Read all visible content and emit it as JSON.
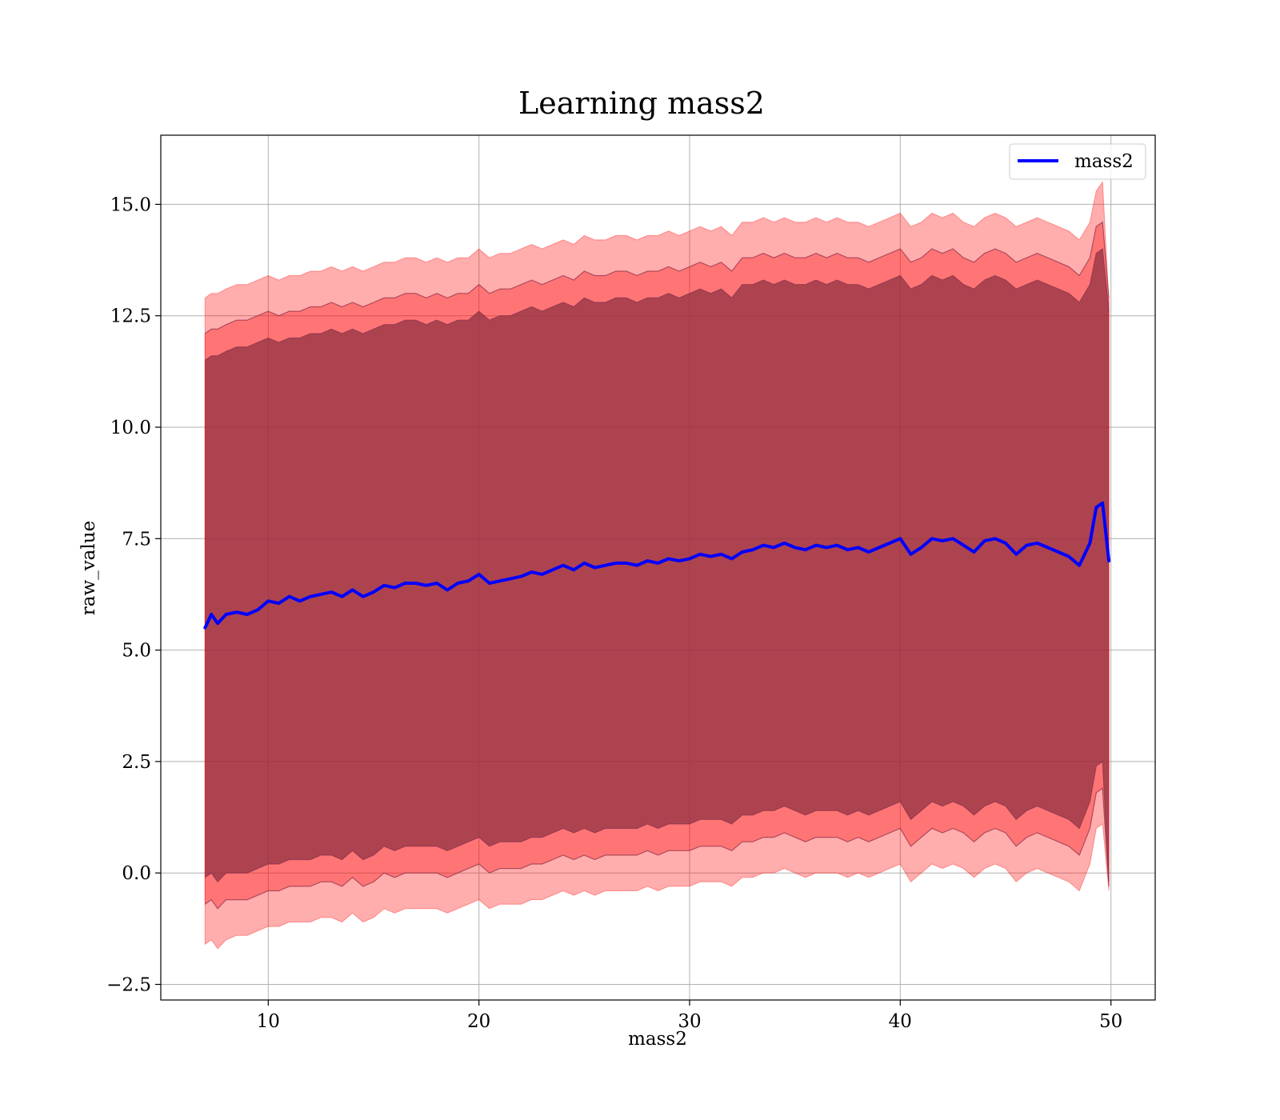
{
  "chart_data": {
    "type": "area",
    "title": "Learning mass2",
    "xlabel": "mass2",
    "ylabel": "raw_value",
    "xlim": [
      4.9,
      52.1
    ],
    "ylim": [
      -2.85,
      16.55
    ],
    "xticks": [
      10,
      20,
      30,
      40,
      50
    ],
    "xtick_labels": [
      "10",
      "20",
      "30",
      "40",
      "50"
    ],
    "yticks": [
      -2.5,
      0.0,
      2.5,
      5.0,
      7.5,
      10.0,
      12.5,
      15.0
    ],
    "ytick_labels": [
      "−2.5",
      "0.0",
      "2.5",
      "5.0",
      "7.5",
      "10.0",
      "12.5",
      "15.0"
    ],
    "grid": true,
    "legend": {
      "position": "top-right",
      "entries": [
        "mass2"
      ]
    },
    "series": [
      {
        "name": "mass2",
        "color": "#0000ff",
        "x": [
          7.0,
          7.3,
          7.6,
          8.0,
          8.5,
          9.0,
          9.5,
          10.0,
          10.5,
          11.0,
          11.5,
          12.0,
          12.5,
          13.0,
          13.5,
          14.0,
          14.5,
          15.0,
          15.5,
          16.0,
          16.5,
          17.0,
          17.5,
          18.0,
          18.5,
          19.0,
          19.5,
          20.0,
          20.5,
          21.0,
          21.5,
          22.0,
          22.5,
          23.0,
          23.5,
          24.0,
          24.5,
          25.0,
          25.5,
          26.0,
          26.5,
          27.0,
          27.5,
          28.0,
          28.5,
          29.0,
          29.5,
          30.0,
          30.5,
          31.0,
          31.5,
          32.0,
          32.5,
          33.0,
          33.5,
          34.0,
          34.5,
          35.0,
          35.5,
          36.0,
          36.5,
          37.0,
          37.5,
          38.0,
          38.5,
          39.0,
          39.5,
          40.0,
          40.5,
          41.0,
          41.5,
          42.0,
          42.5,
          43.0,
          43.5,
          44.0,
          44.5,
          45.0,
          45.5,
          46.0,
          46.5,
          47.0,
          47.5,
          48.0,
          48.5,
          49.0,
          49.3,
          49.6,
          49.9
        ],
        "y": [
          5.5,
          5.8,
          5.6,
          5.8,
          5.85,
          5.8,
          5.9,
          6.1,
          6.05,
          6.2,
          6.1,
          6.2,
          6.25,
          6.3,
          6.2,
          6.35,
          6.2,
          6.3,
          6.45,
          6.4,
          6.5,
          6.5,
          6.45,
          6.5,
          6.35,
          6.5,
          6.55,
          6.7,
          6.5,
          6.55,
          6.6,
          6.65,
          6.75,
          6.7,
          6.8,
          6.9,
          6.8,
          6.95,
          6.85,
          6.9,
          6.95,
          6.95,
          6.9,
          7.0,
          6.95,
          7.05,
          7.0,
          7.05,
          7.15,
          7.1,
          7.15,
          7.05,
          7.2,
          7.25,
          7.35,
          7.3,
          7.4,
          7.3,
          7.25,
          7.35,
          7.3,
          7.35,
          7.25,
          7.3,
          7.2,
          7.3,
          7.4,
          7.5,
          7.15,
          7.3,
          7.5,
          7.45,
          7.5,
          7.35,
          7.2,
          7.45,
          7.5,
          7.4,
          7.15,
          7.35,
          7.4,
          7.3,
          7.2,
          7.1,
          6.9,
          7.4,
          8.2,
          8.3,
          7.0
        ],
        "bands": [
          {
            "upper": [
              11.5,
              11.6,
              11.6,
              11.7,
              11.8,
              11.8,
              11.9,
              12.0,
              11.9,
              12.0,
              12.0,
              12.1,
              12.1,
              12.2,
              12.1,
              12.2,
              12.1,
              12.2,
              12.3,
              12.3,
              12.4,
              12.4,
              12.3,
              12.4,
              12.3,
              12.4,
              12.4,
              12.6,
              12.4,
              12.5,
              12.5,
              12.6,
              12.7,
              12.6,
              12.7,
              12.8,
              12.7,
              12.9,
              12.8,
              12.8,
              12.9,
              12.9,
              12.8,
              12.9,
              12.9,
              13.0,
              12.9,
              13.0,
              13.1,
              13.0,
              13.1,
              12.9,
              13.2,
              13.2,
              13.3,
              13.2,
              13.3,
              13.2,
              13.2,
              13.3,
              13.2,
              13.3,
              13.2,
              13.2,
              13.1,
              13.2,
              13.3,
              13.4,
              13.1,
              13.2,
              13.4,
              13.3,
              13.4,
              13.2,
              13.1,
              13.3,
              13.4,
              13.3,
              13.1,
              13.2,
              13.3,
              13.2,
              13.1,
              13.0,
              12.8,
              13.2,
              13.9,
              14.0,
              12.6
            ],
            "lower": [
              -0.1,
              0.0,
              -0.2,
              0.0,
              0.0,
              0.0,
              0.1,
              0.2,
              0.2,
              0.3,
              0.3,
              0.3,
              0.4,
              0.4,
              0.3,
              0.5,
              0.3,
              0.4,
              0.6,
              0.5,
              0.6,
              0.6,
              0.6,
              0.6,
              0.5,
              0.6,
              0.7,
              0.8,
              0.6,
              0.7,
              0.7,
              0.7,
              0.8,
              0.8,
              0.9,
              1.0,
              0.9,
              1.0,
              0.9,
              1.0,
              1.0,
              1.0,
              1.0,
              1.1,
              1.0,
              1.1,
              1.1,
              1.1,
              1.2,
              1.2,
              1.2,
              1.1,
              1.3,
              1.3,
              1.4,
              1.4,
              1.5,
              1.4,
              1.3,
              1.4,
              1.4,
              1.4,
              1.3,
              1.4,
              1.3,
              1.4,
              1.5,
              1.6,
              1.2,
              1.4,
              1.6,
              1.5,
              1.6,
              1.5,
              1.3,
              1.5,
              1.6,
              1.5,
              1.2,
              1.4,
              1.5,
              1.4,
              1.3,
              1.2,
              1.0,
              1.6,
              2.4,
              2.5,
              -0.2
            ]
          },
          {
            "upper": [
              12.1,
              12.2,
              12.2,
              12.3,
              12.4,
              12.4,
              12.5,
              12.6,
              12.5,
              12.6,
              12.6,
              12.7,
              12.7,
              12.8,
              12.7,
              12.8,
              12.7,
              12.8,
              12.9,
              12.9,
              13.0,
              13.0,
              12.9,
              13.0,
              12.9,
              13.0,
              13.0,
              13.2,
              13.0,
              13.1,
              13.1,
              13.2,
              13.3,
              13.2,
              13.3,
              13.4,
              13.3,
              13.5,
              13.4,
              13.4,
              13.5,
              13.5,
              13.4,
              13.5,
              13.5,
              13.6,
              13.5,
              13.6,
              13.7,
              13.6,
              13.7,
              13.5,
              13.8,
              13.8,
              13.9,
              13.8,
              13.9,
              13.8,
              13.8,
              13.9,
              13.8,
              13.9,
              13.8,
              13.8,
              13.7,
              13.8,
              13.9,
              14.0,
              13.7,
              13.8,
              14.0,
              13.9,
              14.0,
              13.8,
              13.7,
              13.9,
              14.0,
              13.9,
              13.7,
              13.8,
              13.9,
              13.8,
              13.7,
              13.6,
              13.4,
              13.8,
              14.5,
              14.6,
              12.9
            ],
            "lower": [
              -0.7,
              -0.6,
              -0.8,
              -0.6,
              -0.6,
              -0.6,
              -0.5,
              -0.4,
              -0.4,
              -0.3,
              -0.3,
              -0.3,
              -0.2,
              -0.2,
              -0.3,
              -0.1,
              -0.3,
              -0.2,
              0.0,
              -0.1,
              0.0,
              0.0,
              0.0,
              0.0,
              -0.1,
              0.0,
              0.1,
              0.2,
              0.0,
              0.1,
              0.1,
              0.1,
              0.2,
              0.2,
              0.3,
              0.4,
              0.3,
              0.4,
              0.3,
              0.4,
              0.4,
              0.4,
              0.4,
              0.5,
              0.4,
              0.5,
              0.5,
              0.5,
              0.6,
              0.6,
              0.6,
              0.5,
              0.7,
              0.7,
              0.8,
              0.8,
              0.9,
              0.8,
              0.7,
              0.8,
              0.8,
              0.8,
              0.7,
              0.8,
              0.7,
              0.8,
              0.9,
              1.0,
              0.6,
              0.8,
              1.0,
              0.9,
              1.0,
              0.9,
              0.7,
              0.9,
              1.0,
              0.9,
              0.6,
              0.8,
              0.9,
              0.8,
              0.7,
              0.6,
              0.4,
              1.0,
              1.8,
              1.9,
              -0.3
            ]
          },
          {
            "upper": [
              12.9,
              13.0,
              13.0,
              13.1,
              13.2,
              13.2,
              13.3,
              13.4,
              13.3,
              13.4,
              13.4,
              13.5,
              13.5,
              13.6,
              13.5,
              13.6,
              13.5,
              13.6,
              13.7,
              13.7,
              13.8,
              13.8,
              13.7,
              13.8,
              13.7,
              13.8,
              13.8,
              14.0,
              13.8,
              13.9,
              13.9,
              14.0,
              14.1,
              14.0,
              14.1,
              14.2,
              14.1,
              14.3,
              14.2,
              14.2,
              14.3,
              14.3,
              14.2,
              14.3,
              14.3,
              14.4,
              14.3,
              14.4,
              14.5,
              14.4,
              14.5,
              14.3,
              14.6,
              14.6,
              14.7,
              14.6,
              14.7,
              14.6,
              14.6,
              14.7,
              14.6,
              14.7,
              14.6,
              14.6,
              14.5,
              14.6,
              14.7,
              14.8,
              14.5,
              14.6,
              14.8,
              14.7,
              14.8,
              14.6,
              14.5,
              14.7,
              14.8,
              14.7,
              14.5,
              14.6,
              14.7,
              14.6,
              14.5,
              14.4,
              14.2,
              14.6,
              15.3,
              15.5,
              12.8
            ],
            "lower": [
              -1.6,
              -1.5,
              -1.7,
              -1.5,
              -1.4,
              -1.4,
              -1.3,
              -1.2,
              -1.2,
              -1.1,
              -1.1,
              -1.1,
              -1.0,
              -1.0,
              -1.1,
              -0.9,
              -1.1,
              -1.0,
              -0.8,
              -0.9,
              -0.8,
              -0.8,
              -0.8,
              -0.8,
              -0.9,
              -0.8,
              -0.7,
              -0.6,
              -0.8,
              -0.7,
              -0.7,
              -0.7,
              -0.6,
              -0.6,
              -0.5,
              -0.4,
              -0.5,
              -0.4,
              -0.5,
              -0.4,
              -0.4,
              -0.4,
              -0.4,
              -0.3,
              -0.4,
              -0.3,
              -0.3,
              -0.3,
              -0.2,
              -0.2,
              -0.2,
              -0.3,
              -0.1,
              -0.1,
              0.0,
              0.0,
              0.1,
              0.0,
              -0.1,
              0.0,
              0.0,
              0.0,
              -0.1,
              0.0,
              -0.1,
              0.0,
              0.1,
              0.2,
              -0.2,
              0.0,
              0.2,
              0.1,
              0.2,
              0.1,
              -0.1,
              0.1,
              0.2,
              0.1,
              -0.2,
              0.0,
              0.1,
              0.0,
              -0.1,
              -0.2,
              -0.4,
              0.2,
              1.0,
              1.1,
              -0.4
            ]
          }
        ]
      }
    ]
  }
}
